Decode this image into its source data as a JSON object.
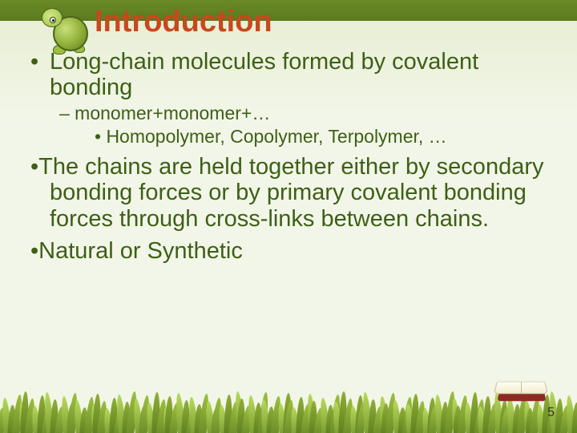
{
  "title": {
    "text": "Introduction",
    "color": "#c8481e"
  },
  "bullets": {
    "item1": {
      "text": "Long-chain molecules formed by covalent bonding"
    },
    "item1_sub1": {
      "text": "– monomer+monomer+…"
    },
    "item1_sub1_sub1": {
      "text": "• Homopolymer, Copolymer, Terpolymer, …"
    },
    "item2": {
      "text": "The chains are held together either by secondary bonding forces or by primary covalent bonding forces through cross-links between chains."
    },
    "item3": {
      "text": "Natural or Synthetic"
    }
  },
  "bodyColor": "#3e5f16",
  "bulletDot": "•",
  "slideNumber": "5",
  "theme": {
    "headerBar": "#5a7a1e",
    "bodyBg": "#f2f6e8"
  }
}
